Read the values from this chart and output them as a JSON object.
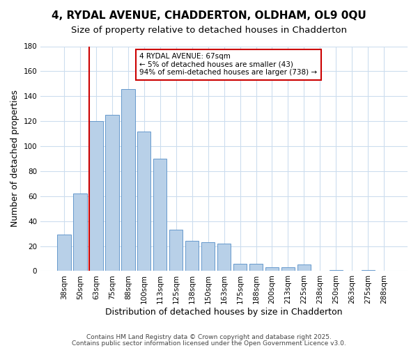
{
  "title1": "4, RYDAL AVENUE, CHADDERTON, OLDHAM, OL9 0QU",
  "title2": "Size of property relative to detached houses in Chadderton",
  "xlabel": "Distribution of detached houses by size in Chadderton",
  "ylabel": "Number of detached properties",
  "bar_labels": [
    "38sqm",
    "50sqm",
    "63sqm",
    "75sqm",
    "88sqm",
    "100sqm",
    "113sqm",
    "125sqm",
    "138sqm",
    "150sqm",
    "163sqm",
    "175sqm",
    "188sqm",
    "200sqm",
    "213sqm",
    "225sqm",
    "238sqm",
    "250sqm",
    "263sqm",
    "275sqm",
    "288sqm"
  ],
  "bar_values": [
    29,
    62,
    120,
    125,
    146,
    112,
    90,
    33,
    24,
    23,
    22,
    6,
    6,
    3,
    3,
    5,
    0,
    1,
    0,
    1,
    0
  ],
  "bar_color": "#b8d0e8",
  "bar_edge_color": "#6699cc",
  "vline_x_index": 2,
  "vline_color": "#cc0000",
  "ylim": [
    0,
    180
  ],
  "yticks": [
    0,
    20,
    40,
    60,
    80,
    100,
    120,
    140,
    160,
    180
  ],
  "annotation_title": "4 RYDAL AVENUE: 67sqm",
  "annotation_line1": "← 5% of detached houses are smaller (43)",
  "annotation_line2": "94% of semi-detached houses are larger (738) →",
  "annotation_box_color": "#ffffff",
  "annotation_box_edge": "#cc0000",
  "footnote1": "Contains HM Land Registry data © Crown copyright and database right 2025.",
  "footnote2": "Contains public sector information licensed under the Open Government Licence v3.0.",
  "bg_color": "#ffffff",
  "grid_color": "#ccddee",
  "title1_fontsize": 11,
  "title2_fontsize": 9.5,
  "xlabel_fontsize": 9,
  "ylabel_fontsize": 9,
  "tick_fontsize": 7.5,
  "footnote_fontsize": 6.5
}
